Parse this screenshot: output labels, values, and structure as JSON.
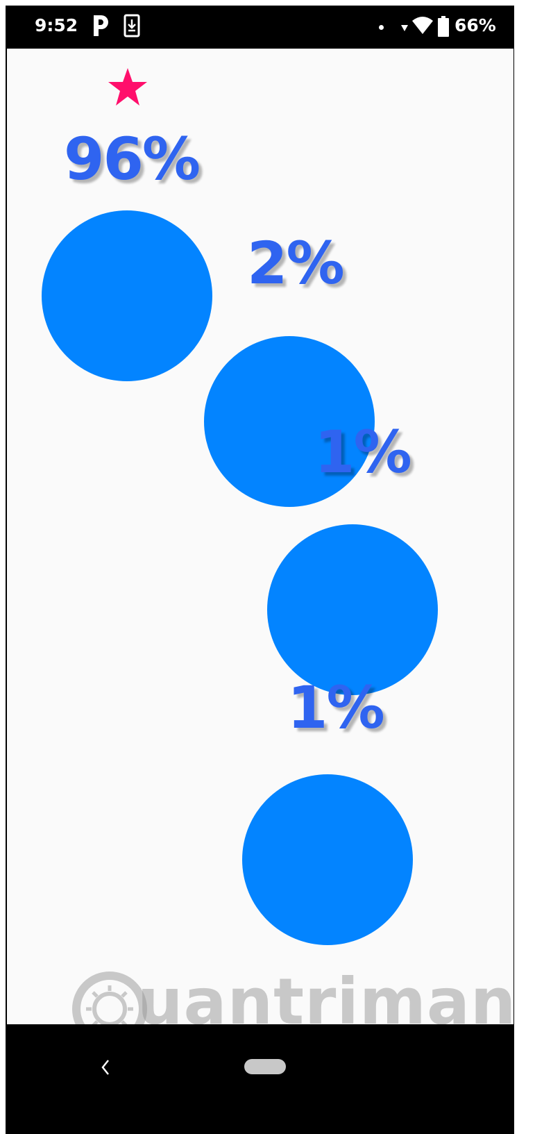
{
  "status_bar": {
    "time": "9:52",
    "battery": "66%",
    "icons": [
      "parking-icon",
      "download-icon",
      "notification-dot-icon",
      "signal-icon",
      "wifi-icon",
      "battery-icon"
    ]
  },
  "content": {
    "marker_icon": "star-icon",
    "marker_color": "#ff0f6b",
    "circle_color": "#0384ff",
    "label_color": "#2f64f0",
    "items": [
      {
        "label": "96%",
        "value": 96
      },
      {
        "label": "2%",
        "value": 2
      },
      {
        "label": "1%",
        "value": 1
      },
      {
        "label": "1%",
        "value": 1
      }
    ]
  },
  "watermark": {
    "text": "uantrimang"
  },
  "nav_bar": {
    "icons": [
      "back-icon",
      "home-pill-icon"
    ]
  }
}
